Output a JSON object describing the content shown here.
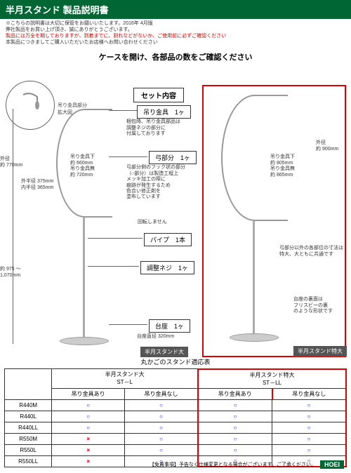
{
  "header": {
    "title": "半月スタンド 製品説明書",
    "note1": "※こちらの説明書は大切に保管をお願いいたします。2016年 4月版",
    "note2": "弊社製品をお買い上げ頂き、誠にありがとうございます。",
    "note3": "製品には万全を期しておりますが、到着までに、割れなどがないか、ご使用前に必ずご確認ください",
    "note4": "本製品につきましてご購入いただいたお店様へお問い合わせください"
  },
  "subtitle": "ケースを開け、各部品の数をご確認ください",
  "detail": {
    "label": "吊り金具部分\n拡大図"
  },
  "section_title": "セット内容",
  "parts": {
    "hook": "吊り金具　1ヶ",
    "hook_note": "梱包時、吊り金具部品は\n調整ネジの部分に\n付属しております",
    "bow": "弓部分　1ヶ",
    "bow_note": "弓部分側のフック状の部分\n（○部分）は製造工程上\nメッキ加工の際に\n痕跡が発生するため\n色合い修正剤を\n塗布しています",
    "norotate": "回転しません",
    "pipe": "パイプ　1本",
    "screw": "調整ネジ　1ヶ",
    "base": "台座　1ヶ"
  },
  "dims": {
    "outer_d": "外径\n約 770mm",
    "outer_r": "外半径 375mm\n内半径 365mm",
    "hook_below": "吊り金具下\n約 660mm\n吊り金具無\n約 720mm",
    "height": "約 975 ～\n1,070mm",
    "base_d": "台座直径 320mm",
    "xl_outer_d": "外径\n約 900mm",
    "xl_hook": "吊り金具下\n約 805mm\n吊り金具無\n約 865mm",
    "xl_note": "弓部分以外の各部位の寸法は\n特大、大ともに共通です",
    "base_note": "台座の裏面は\nフリスビーの裏\nのような形状です"
  },
  "stand_labels": {
    "large": "半月スタンド大",
    "xl": "半月スタンド特大"
  },
  "table": {
    "title": "丸かごのスタンド適応表",
    "col1": "半月スタンド大\nST－L",
    "col2": "半月スタンド特大\nST－LL",
    "sub_with": "吊り金具あり",
    "sub_without": "吊り金具なし",
    "rows": [
      {
        "name": "R440M",
        "vals": [
          "○",
          "○",
          "○",
          "○"
        ]
      },
      {
        "name": "R440L",
        "vals": [
          "○",
          "○",
          "○",
          "○"
        ]
      },
      {
        "name": "R440LL",
        "vals": [
          "○",
          "○",
          "○",
          "○"
        ]
      },
      {
        "name": "R550M",
        "vals": [
          "×",
          "○",
          "○",
          "○"
        ]
      },
      {
        "name": "R550L",
        "vals": [
          "×",
          "○",
          "○",
          "○"
        ]
      },
      {
        "name": "R550LL",
        "vals": [
          "×",
          "○",
          "○",
          "○"
        ]
      }
    ]
  },
  "footer": {
    "disclaimer": "【免責事項】予告なく仕様変更となる場合がございます。ご了承ください。",
    "brand": "HOEI"
  },
  "marks": {
    "o": "○",
    "x": "×"
  }
}
